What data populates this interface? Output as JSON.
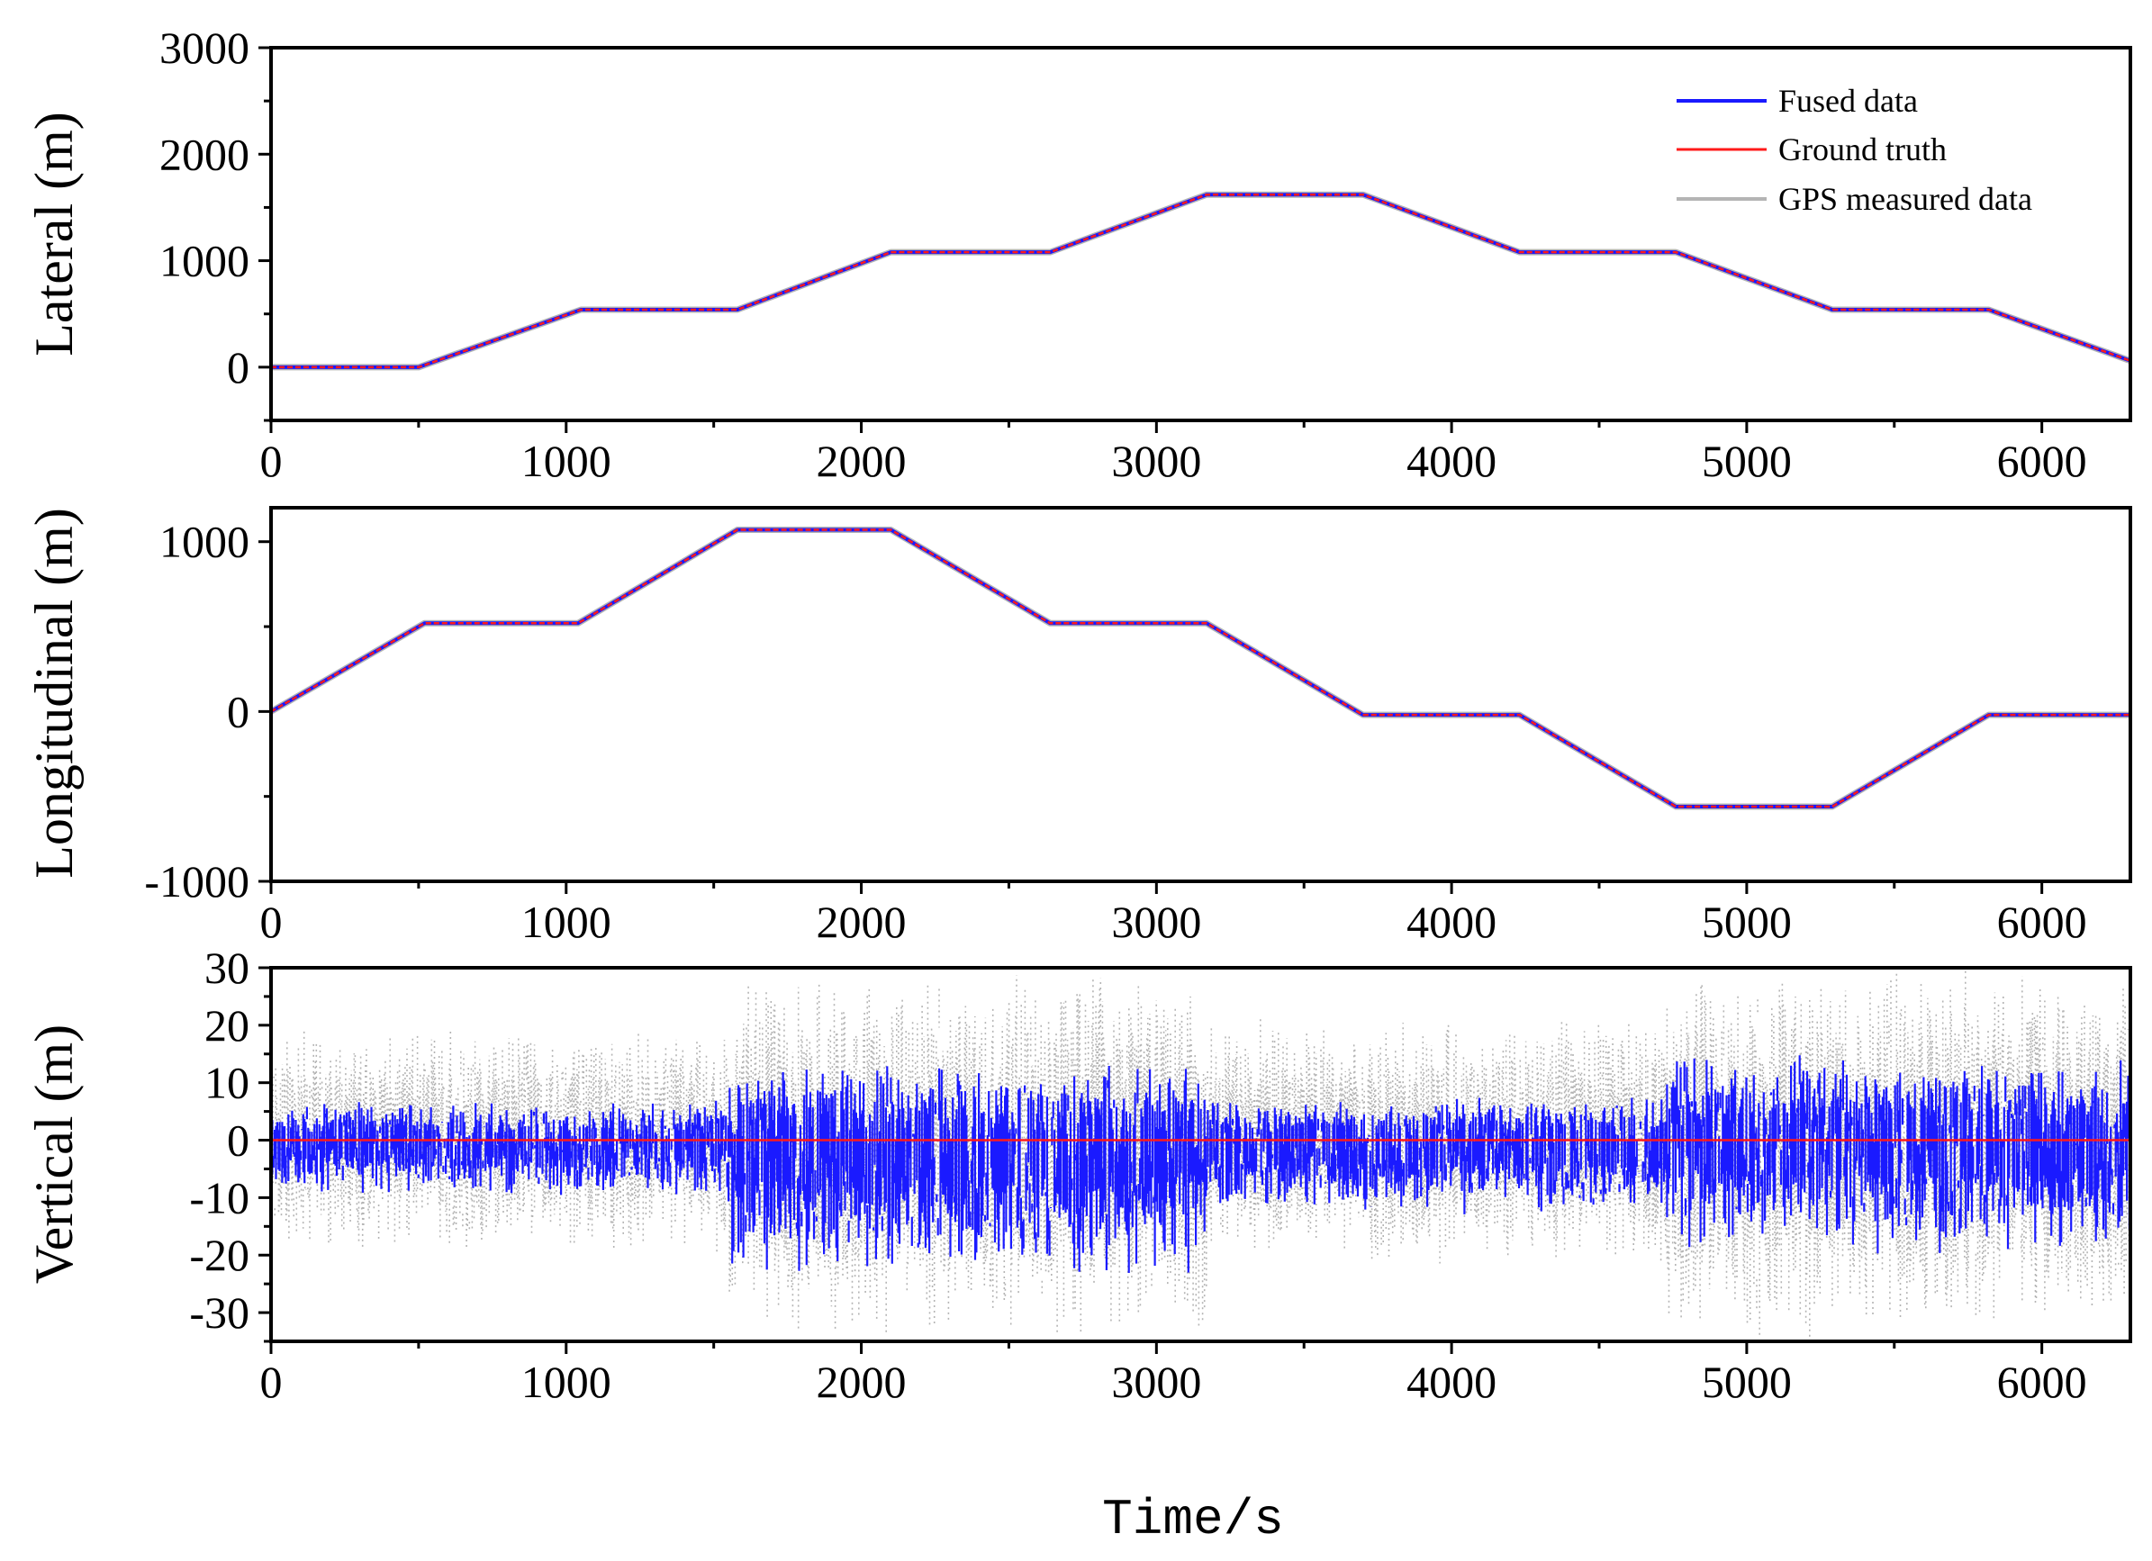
{
  "colors": {
    "fused": "#1a1aff",
    "truth": "#ff1a1a",
    "gps": "#b4b4b4",
    "axis": "#000000"
  },
  "x_axis_title": "Time/s",
  "legend": [
    {
      "key": "fused",
      "label": "Fused data"
    },
    {
      "key": "truth",
      "label": "Ground truth"
    },
    {
      "key": "gps",
      "label": "GPS measured data"
    }
  ],
  "chart_data": [
    {
      "id": "lateral",
      "type": "line",
      "ylabel": "Lateral (m)",
      "xlim": [
        0,
        6300
      ],
      "ylim": [
        -500,
        3000
      ],
      "xticks": [
        0,
        1000,
        2000,
        3000,
        4000,
        5000,
        6000
      ],
      "xtick_labels": [
        "0",
        "1000",
        "2000",
        "3000",
        "4000",
        "5000",
        "6000"
      ],
      "yticks": [
        0,
        1000,
        2000,
        3000
      ],
      "ytick_labels": [
        "0",
        "1000",
        "2000",
        "3000"
      ],
      "x": [
        0,
        500,
        1050,
        1580,
        2100,
        2640,
        3170,
        3700,
        4230,
        4760,
        5290,
        5820,
        6300
      ],
      "series": [
        {
          "name": "Ground truth",
          "key": "truth",
          "values": [
            0,
            0,
            540,
            540,
            1080,
            1080,
            1620,
            1620,
            1080,
            1080,
            540,
            540,
            60
          ]
        },
        {
          "name": "Fused data",
          "key": "fused",
          "values": [
            0,
            0,
            540,
            540,
            1080,
            1080,
            1620,
            1620,
            1080,
            1080,
            540,
            540,
            60
          ]
        },
        {
          "name": "GPS measured data",
          "key": "gps",
          "values": [
            0,
            0,
            540,
            540,
            1080,
            1080,
            1620,
            1620,
            1080,
            1080,
            540,
            540,
            60
          ]
        }
      ]
    },
    {
      "id": "longitudinal",
      "type": "line",
      "ylabel": "Longitudinal (m)",
      "xlim": [
        0,
        6300
      ],
      "ylim": [
        -1000,
        1200
      ],
      "xticks": [
        0,
        1000,
        2000,
        3000,
        4000,
        5000,
        6000
      ],
      "xtick_labels": [
        "0",
        "1000",
        "2000",
        "3000",
        "4000",
        "5000",
        "6000"
      ],
      "yticks": [
        -1000,
        0,
        1000
      ],
      "ytick_labels": [
        "-1000",
        "0",
        "1000"
      ],
      "x": [
        0,
        520,
        1040,
        1580,
        2100,
        2640,
        3170,
        3700,
        4230,
        4760,
        5290,
        5820,
        6300
      ],
      "series": [
        {
          "name": "Ground truth",
          "key": "truth",
          "values": [
            0,
            520,
            520,
            1070,
            1070,
            520,
            520,
            -20,
            -20,
            -560,
            -560,
            -20,
            -20
          ]
        },
        {
          "name": "Fused data",
          "key": "fused",
          "values": [
            0,
            520,
            520,
            1070,
            1070,
            520,
            520,
            -20,
            -20,
            -560,
            -560,
            -20,
            -20
          ]
        },
        {
          "name": "GPS measured data",
          "key": "gps",
          "values": [
            0,
            520,
            520,
            1070,
            1070,
            520,
            520,
            -20,
            -20,
            -560,
            -560,
            -20,
            -20
          ]
        }
      ]
    },
    {
      "id": "vertical",
      "type": "line",
      "ylabel": "Vertical (m)",
      "xlim": [
        0,
        6300
      ],
      "ylim": [
        -35,
        30
      ],
      "xticks": [
        0,
        1000,
        2000,
        3000,
        4000,
        5000,
        6000
      ],
      "xtick_labels": [
        "0",
        "1000",
        "2000",
        "3000",
        "4000",
        "5000",
        "6000"
      ],
      "yticks": [
        -30,
        -20,
        -10,
        0,
        10,
        20,
        30
      ],
      "ytick_labels": [
        "-30",
        "-20",
        "-10",
        "0",
        "10",
        "20",
        "30"
      ],
      "noise_ranges": [
        {
          "x_from": 0,
          "x_to": 1550,
          "gps_min": -20,
          "gps_max": 20,
          "fused_min": -10,
          "fused_max": 7
        },
        {
          "x_from": 1550,
          "x_to": 3170,
          "gps_min": -35,
          "gps_max": 30,
          "fused_min": -24,
          "fused_max": 14
        },
        {
          "x_from": 3170,
          "x_to": 4730,
          "gps_min": -22,
          "gps_max": 22,
          "fused_min": -13,
          "fused_max": 8
        },
        {
          "x_from": 4730,
          "x_to": 6300,
          "gps_min": -35,
          "gps_max": 30,
          "fused_min": -20,
          "fused_max": 15
        }
      ],
      "series": [
        {
          "name": "Ground truth",
          "key": "truth",
          "x": [
            0,
            6300
          ],
          "values": [
            0,
            0
          ]
        }
      ]
    }
  ]
}
